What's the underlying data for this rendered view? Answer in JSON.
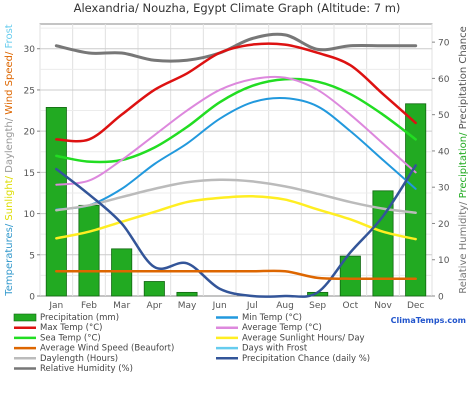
{
  "chart_data": {
    "type": "line",
    "title": "Alexandria/ Nouzha, Egypt Climate Graph (Altitude: 7 m)",
    "categories": [
      "Jan",
      "Feb",
      "Mar",
      "Apr",
      "May",
      "Jun",
      "Jul",
      "Aug",
      "Sep",
      "Oct",
      "Nov",
      "Dec"
    ],
    "left_axis": {
      "ticks": [
        "0",
        "5",
        "10",
        "15",
        "20",
        "25",
        "30"
      ],
      "ylim": [
        0,
        33
      ],
      "label_parts": [
        {
          "text": "Temperatures/ ",
          "color": "#3399cc"
        },
        {
          "text": "Sunlight/ ",
          "color": "#dddd00"
        },
        {
          "text": "Daylength/ ",
          "color": "#999999"
        },
        {
          "text": "Wind Speed/ ",
          "color": "#dd6600"
        },
        {
          "text": "Frost",
          "color": "#66ccee"
        }
      ]
    },
    "right_axis": {
      "ticks": [
        "0",
        "10",
        "20",
        "30",
        "40",
        "50",
        "60",
        "70"
      ],
      "ylim": [
        0,
        75
      ],
      "label_parts": [
        {
          "text": "Relative Humidity/ ",
          "color": "#777777"
        },
        {
          "text": "Precipitation/ ",
          "color": "#22aa22"
        },
        {
          "text": "Precipitation Chance",
          "color": "#555555"
        }
      ]
    },
    "bars": {
      "name": "Precipitation (mm)",
      "axis": "right",
      "color": "#22aa22",
      "values": [
        52,
        25,
        13,
        4,
        1,
        0,
        0,
        0,
        1,
        11,
        29,
        53
      ]
    },
    "series": [
      {
        "name": "Relative Humidity (%)",
        "axis": "right",
        "color": "#777777",
        "width": 3,
        "values": [
          69,
          67,
          67,
          65,
          65,
          67,
          71,
          72,
          68,
          69,
          69,
          69
        ]
      },
      {
        "name": "Max Temp (°C)",
        "axis": "left",
        "color": "#dd1111",
        "width": 2.5,
        "values": [
          19,
          19,
          22,
          25,
          27,
          29.5,
          30.5,
          30.5,
          29.5,
          28,
          24.5,
          21
        ]
      },
      {
        "name": "Sea Temp (°C)",
        "axis": "left",
        "color": "#22dd22",
        "width": 2.5,
        "values": [
          17,
          16.3,
          16.5,
          18,
          20.5,
          23.5,
          25.5,
          26.3,
          26,
          24.5,
          22,
          19
        ]
      },
      {
        "name": "Average Temp (°C)",
        "axis": "left",
        "color": "#dd88dd",
        "width": 2,
        "values": [
          13.5,
          14,
          16.5,
          19.5,
          22.5,
          25,
          26.3,
          26.5,
          25,
          22,
          18.5,
          15
        ]
      },
      {
        "name": "Min Temp (°C)",
        "axis": "left",
        "color": "#2299dd",
        "width": 2,
        "values": [
          10.5,
          11,
          13,
          16,
          18.5,
          21.5,
          23.5,
          24,
          23,
          20,
          16.5,
          13
        ]
      },
      {
        "name": "Daylength (Hours)",
        "axis": "left",
        "color": "#bbbbbb",
        "width": 2.5,
        "values": [
          10.4,
          11,
          12,
          13,
          13.8,
          14.1,
          13.9,
          13.3,
          12.4,
          11.4,
          10.6,
          10.1
        ]
      },
      {
        "name": "Average Sunlight Hours/ Day",
        "axis": "left",
        "color": "#ffee22",
        "width": 2.5,
        "values": [
          7,
          7.8,
          9,
          10.2,
          11.4,
          11.9,
          12.1,
          11.7,
          10.5,
          9.3,
          7.8,
          6.9
        ]
      },
      {
        "name": "Precipitation Chance (daily %)",
        "axis": "right",
        "color": "#335599",
        "width": 2.5,
        "values": [
          35,
          28,
          20,
          8,
          9,
          2,
          0,
          0,
          1,
          12,
          22,
          36
        ]
      },
      {
        "name": "Average Wind Speed (Beaufort)",
        "axis": "left",
        "color": "#dd6600",
        "width": 2.5,
        "values": [
          3,
          3,
          3,
          3,
          3,
          3,
          3,
          3,
          2.2,
          2.1,
          2.1,
          2.1
        ]
      },
      {
        "name": "Days with Frost",
        "axis": "left",
        "color": "#66ccee",
        "width": 2,
        "values": [
          0,
          0,
          0,
          0,
          0,
          0,
          0,
          0,
          0,
          0,
          0,
          0
        ]
      }
    ],
    "grid": true,
    "legend_placement": "bottom"
  },
  "legend": [
    {
      "label": "Precipitation (mm)",
      "color": "#22aa22",
      "kind": "box"
    },
    {
      "label": "Min Temp (°C)",
      "color": "#2299dd",
      "kind": "line"
    },
    {
      "label": "Max Temp (°C)",
      "color": "#dd1111",
      "kind": "line"
    },
    {
      "label": "Average Temp (°C)",
      "color": "#dd88dd",
      "kind": "line"
    },
    {
      "label": "Sea Temp (°C)",
      "color": "#22dd22",
      "kind": "line"
    },
    {
      "label": "Average Sunlight Hours/ Day",
      "color": "#ffee22",
      "kind": "line"
    },
    {
      "label": "Average Wind Speed (Beaufort)",
      "color": "#dd6600",
      "kind": "line"
    },
    {
      "label": "Days with Frost",
      "color": "#66ccee",
      "kind": "line"
    },
    {
      "label": "Daylength (Hours)",
      "color": "#bbbbbb",
      "kind": "line"
    },
    {
      "label": "Precipitation Chance (daily %)",
      "color": "#335599",
      "kind": "line"
    },
    {
      "label": "Relative Humidity (%)",
      "color": "#777777",
      "kind": "line"
    }
  ],
  "watermark": "ClimaTemps.com"
}
